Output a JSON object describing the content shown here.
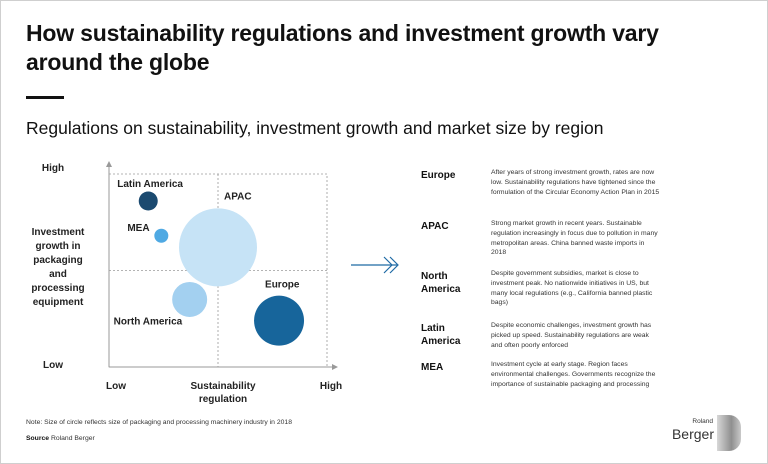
{
  "title": "How sustainability regulations and investment growth vary around the globe",
  "subtitle": "Regulations on sustainability, investment growth and market size by region",
  "chart_data": {
    "type": "scatter",
    "subtype": "bubble",
    "title": "Regulations on sustainability, investment growth and market size by region",
    "xlabel": "Sustainability regulation",
    "ylabel": "Investment growth in packaging and processing equipment",
    "x_tick_labels": [
      "Low",
      "High"
    ],
    "y_tick_labels": [
      "Low",
      "High"
    ],
    "xlim": [
      0,
      10
    ],
    "ylim": [
      0,
      10
    ],
    "grid": "quadrant dividers at midpoints",
    "size_note": "relative circle size = size of packaging and processing machinery industry in 2018",
    "points": [
      {
        "name": "Latin America",
        "x": 1.8,
        "y": 8.6,
        "size": 9.5,
        "color": "#1b4a70"
      },
      {
        "name": "MEA",
        "x": 2.4,
        "y": 6.8,
        "size": 7,
        "color": "#4fa9e3"
      },
      {
        "name": "APAC",
        "x": 5.0,
        "y": 6.2,
        "size": 39,
        "color": "#c6e3f6"
      },
      {
        "name": "North America",
        "x": 3.7,
        "y": 3.5,
        "size": 17.5,
        "color": "#a3d0f0"
      },
      {
        "name": "Europe",
        "x": 7.8,
        "y": 2.4,
        "size": 25,
        "color": "#17659b"
      }
    ]
  },
  "regions": [
    {
      "name": "Europe",
      "text": "After years of strong investment growth, rates are now low. Sustainability regulations have tightened since the formulation of the Circular Economy Action Plan in 2015"
    },
    {
      "name": "APAC",
      "text": "Strong market growth in recent years. Sustainable regulation increasingly in focus due to pollution in many metropolitan areas. China banned waste imports in 2018"
    },
    {
      "name": "North America",
      "text": "Despite government subsidies, market is close to investment peak. No nationwide initiatives in US, but many local regulations (e.g., California banned plastic bags)"
    },
    {
      "name": "Latin America",
      "text": "Despite economic challenges, investment growth has picked up speed. Sustainability regulations are weak and often poorly enforced"
    },
    {
      "name": "MEA",
      "text": "Investment cycle at early stage. Region faces environmental challenges. Governments recognize the importance of sustainable packaging and processing"
    }
  ],
  "note": "Note: Size of circle reflects size of packaging and processing machinery industry in 2018",
  "source_label": "Source",
  "source_value": "Roland Berger",
  "logo": {
    "line1": "Roland",
    "line2": "Berger"
  },
  "arrow_color": "#1f6aa5"
}
